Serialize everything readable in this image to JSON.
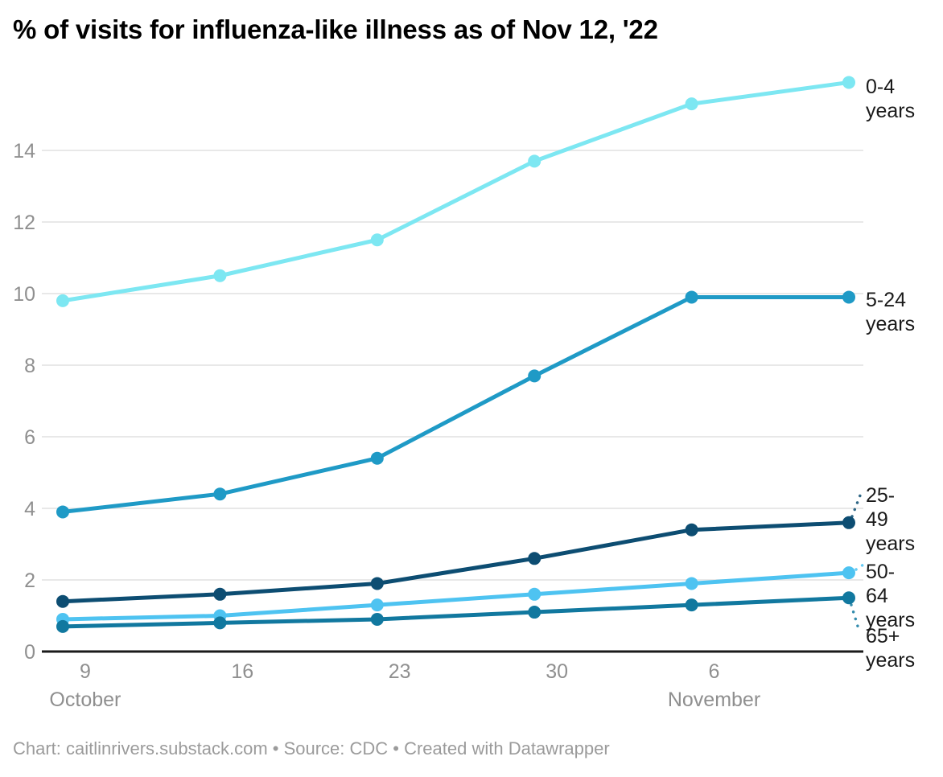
{
  "header": {
    "title": "% of visits for influenza-like illness as of Nov 12, '22"
  },
  "chart_data": {
    "type": "line",
    "title": "% of visits for influenza-like illness as of Nov 12, '22",
    "x": [
      "Oct 8",
      "Oct 15",
      "Oct 22",
      "Oct 29",
      "Nov 5",
      "Nov 12"
    ],
    "x_tick_labels": [
      "9",
      "16",
      "23",
      "30",
      "6"
    ],
    "month_labels": [
      {
        "label": "October",
        "tick_index": 0
      },
      {
        "label": "November",
        "tick_index": 4
      }
    ],
    "y_ticks": [
      0,
      2,
      4,
      6,
      8,
      10,
      12,
      14
    ],
    "ylim": [
      0,
      16
    ],
    "grid": true,
    "legend_position": "direct-labels-right",
    "series": [
      {
        "name": "0-4 years",
        "label_lines": [
          "0-4",
          "years"
        ],
        "color": "#7de7f2",
        "values": [
          9.8,
          10.5,
          11.5,
          13.7,
          15.3,
          15.9
        ]
      },
      {
        "name": "5-24 years",
        "label_lines": [
          "5-24",
          "years"
        ],
        "color": "#1f9ac6",
        "values": [
          3.9,
          4.4,
          5.4,
          7.7,
          9.9,
          9.9
        ]
      },
      {
        "name": "25-49 years",
        "label_lines": [
          "25-",
          "49",
          "years"
        ],
        "color": "#0d4d72",
        "values": [
          1.4,
          1.6,
          1.9,
          2.6,
          3.4,
          3.6
        ]
      },
      {
        "name": "50-64 years",
        "label_lines": [
          "50-",
          "64",
          "years"
        ],
        "color": "#4ec3f1",
        "values": [
          0.9,
          1.0,
          1.3,
          1.6,
          1.9,
          2.2
        ]
      },
      {
        "name": "65+ years",
        "label_lines": [
          "65+",
          "years"
        ],
        "color": "#11789f",
        "values": [
          0.7,
          0.8,
          0.9,
          1.1,
          1.3,
          1.5
        ]
      }
    ],
    "colors": {
      "grid": "#e8e8e8",
      "baseline": "#1a1a1a",
      "axis_text": "#8f8f8f",
      "label_text": "#1a1a1a"
    }
  },
  "footer": {
    "text": "Chart: caitlinrivers.substack.com • Source: CDC • Created with Datawrapper"
  }
}
